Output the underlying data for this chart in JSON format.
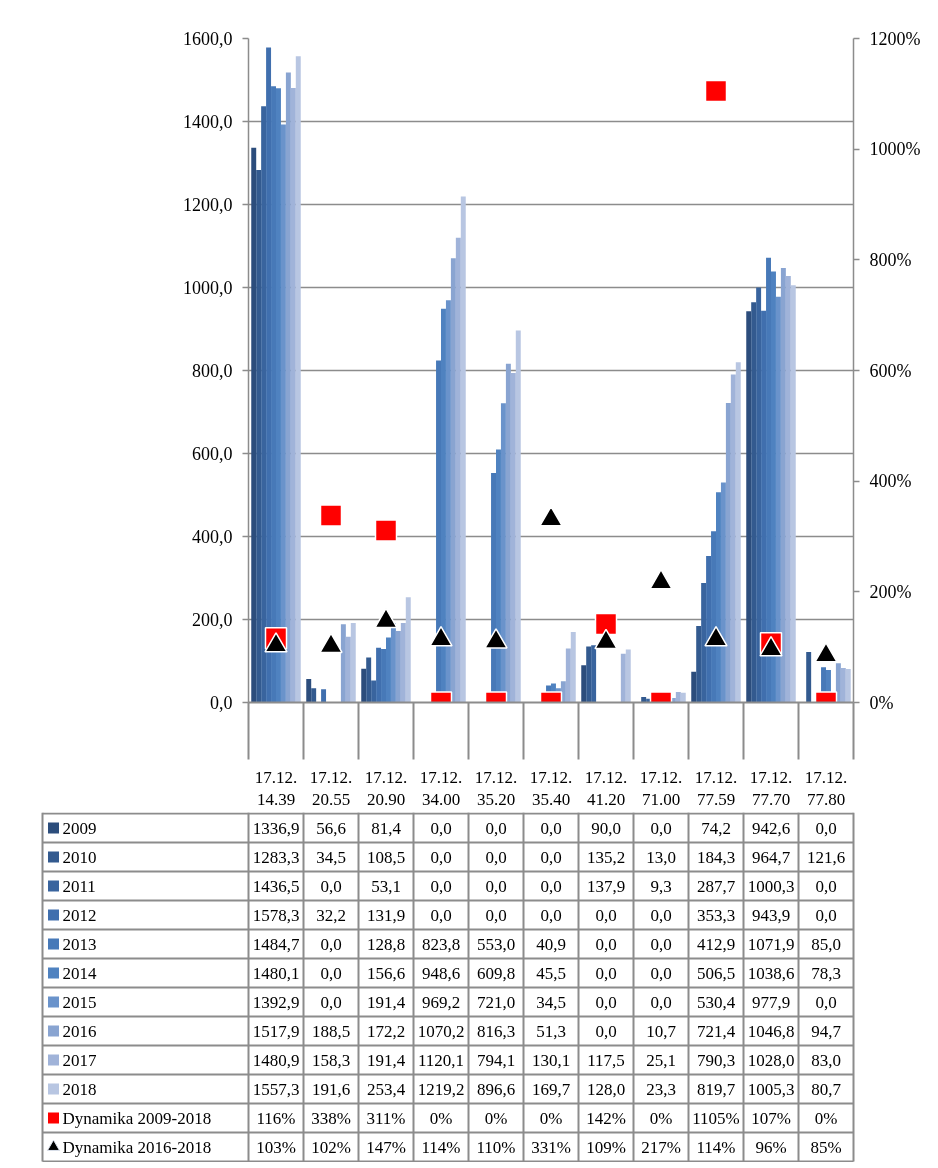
{
  "chart_data": {
    "type": "bar",
    "categories": [
      "17.12.14.39",
      "17.12.20.55",
      "17.12.20.90",
      "17.12.34.00",
      "17.12.35.20",
      "17.12.35.40",
      "17.12.41.20",
      "17.12.71.00",
      "17.12.77.59",
      "17.12.77.70",
      "17.12.77.80"
    ],
    "ylim": [
      0,
      1600
    ],
    "yticks": [
      {
        "value": 0,
        "label": "0,0"
      },
      {
        "value": 200,
        "label": "200,0"
      },
      {
        "value": 400,
        "label": "400,0"
      },
      {
        "value": 600,
        "label": "600,0"
      },
      {
        "value": 800,
        "label": "800,0"
      },
      {
        "value": 1000,
        "label": "1000,0"
      },
      {
        "value": 1200,
        "label": "1200,0"
      },
      {
        "value": 1400,
        "label": "1400,0"
      },
      {
        "value": 1600,
        "label": "1600,0"
      }
    ],
    "y2lim": [
      0,
      1200
    ],
    "y2ticks": [
      {
        "value": 0,
        "label": "0%"
      },
      {
        "value": 200,
        "label": "200%"
      },
      {
        "value": 400,
        "label": "400%"
      },
      {
        "value": 600,
        "label": "600%"
      },
      {
        "value": 800,
        "label": "800%"
      },
      {
        "value": 1000,
        "label": "1000%"
      },
      {
        "value": 1200,
        "label": "1200%"
      }
    ],
    "grid": "y",
    "legend": "bottom",
    "series": [
      {
        "name": "2009",
        "color": "#2c4d7c",
        "values": [
          1336.9,
          56.6,
          81.4,
          0.0,
          0.0,
          0.0,
          90.0,
          0.0,
          74.2,
          942.6,
          0.0
        ],
        "value_labels": [
          "1336,9",
          "56,6",
          "81,4",
          "0,0",
          "0,0",
          "0,0",
          "90,0",
          "0,0",
          "74,2",
          "942,6",
          "0,0"
        ]
      },
      {
        "name": "2010",
        "color": "#335a8f",
        "values": [
          1283.3,
          34.5,
          108.5,
          0.0,
          0.0,
          0.0,
          135.2,
          13.0,
          184.3,
          964.7,
          121.6
        ],
        "value_labels": [
          "1283,3",
          "34,5",
          "108,5",
          "0,0",
          "0,0",
          "0,0",
          "135,2",
          "13,0",
          "184,3",
          "964,7",
          "121,6"
        ]
      },
      {
        "name": "2011",
        "color": "#39649e",
        "values": [
          1436.5,
          0.0,
          53.1,
          0.0,
          0.0,
          0.0,
          137.9,
          9.3,
          287.7,
          1000.3,
          0.0
        ],
        "value_labels": [
          "1436,5",
          "0,0",
          "53,1",
          "0,0",
          "0,0",
          "0,0",
          "137,9",
          "9,3",
          "287,7",
          "1000,3",
          "0,0"
        ]
      },
      {
        "name": "2012",
        "color": "#406fae",
        "values": [
          1578.3,
          32.2,
          131.9,
          0.0,
          0.0,
          0.0,
          0.0,
          0.0,
          353.3,
          943.9,
          0.0
        ],
        "value_labels": [
          "1578,3",
          "32,2",
          "131,9",
          "0,0",
          "0,0",
          "0,0",
          "0,0",
          "0,0",
          "353,3",
          "943,9",
          "0,0"
        ]
      },
      {
        "name": "2013",
        "color": "#4779b8",
        "values": [
          1484.7,
          0.0,
          128.8,
          823.8,
          553.0,
          40.9,
          0.0,
          0.0,
          412.9,
          1071.9,
          85.0
        ],
        "value_labels": [
          "1484,7",
          "0,0",
          "128,8",
          "823,8",
          "553,0",
          "40,9",
          "0,0",
          "0,0",
          "412,9",
          "1071,9",
          "85,0"
        ]
      },
      {
        "name": "2014",
        "color": "#4f82c0",
        "values": [
          1480.1,
          0.0,
          156.6,
          948.6,
          609.8,
          45.5,
          0.0,
          0.0,
          506.5,
          1038.6,
          78.3
        ],
        "value_labels": [
          "1480,1",
          "0,0",
          "156,6",
          "948,6",
          "609,8",
          "45,5",
          "0,0",
          "0,0",
          "506,5",
          "1038,6",
          "78,3"
        ]
      },
      {
        "name": "2015",
        "color": "#6a93cb",
        "values": [
          1392.9,
          0.0,
          191.4,
          969.2,
          721.0,
          34.5,
          0.0,
          0.0,
          530.4,
          977.9,
          0.0
        ],
        "value_labels": [
          "1392,9",
          "0,0",
          "191,4",
          "969,2",
          "721,0",
          "34,5",
          "0,0",
          "0,0",
          "530,4",
          "977,9",
          "0,0"
        ]
      },
      {
        "name": "2016",
        "color": "#89a4d1",
        "values": [
          1517.9,
          188.5,
          172.2,
          1070.2,
          816.3,
          51.3,
          0.0,
          10.7,
          721.4,
          1046.8,
          94.7
        ],
        "value_labels": [
          "1517,9",
          "188,5",
          "172,2",
          "1070,2",
          "816,3",
          "51,3",
          "0,0",
          "10,7",
          "721,4",
          "1046,8",
          "94,7"
        ]
      },
      {
        "name": "2017",
        "color": "#a0b3d9",
        "values": [
          1480.9,
          158.3,
          191.4,
          1120.1,
          794.1,
          130.1,
          117.5,
          25.1,
          790.3,
          1028.0,
          83.0
        ],
        "value_labels": [
          "1480,9",
          "158,3",
          "191,4",
          "1120,1",
          "794,1",
          "130,1",
          "117,5",
          "25,1",
          "790,3",
          "1028,0",
          "83,0"
        ]
      },
      {
        "name": "2018",
        "color": "#b8c6e2",
        "values": [
          1557.3,
          191.6,
          253.4,
          1219.2,
          896.6,
          169.7,
          128.0,
          23.3,
          819.7,
          1005.3,
          80.7
        ],
        "value_labels": [
          "1557,3",
          "191,6",
          "253,4",
          "1219,2",
          "896,6",
          "169,7",
          "128,0",
          "23,3",
          "819,7",
          "1005,3",
          "80,7"
        ]
      },
      {
        "name": "Dynamika 2009-2018",
        "type": "scatter",
        "axis": "y2",
        "marker": "square",
        "color": "#ff0000",
        "values": [
          116,
          338,
          311,
          0,
          0,
          0,
          142,
          0,
          1105,
          107,
          0
        ],
        "value_labels": [
          "116%",
          "338%",
          "311%",
          "0%",
          "0%",
          "0%",
          "142%",
          "0%",
          "1105%",
          "107%",
          "0%"
        ]
      },
      {
        "name": "Dynamika 2016-2018",
        "type": "scatter",
        "axis": "y2",
        "marker": "triangle",
        "color": "#000000",
        "values": [
          103,
          102,
          147,
          114,
          110,
          331,
          109,
          217,
          114,
          96,
          85
        ],
        "value_labels": [
          "103%",
          "102%",
          "147%",
          "114%",
          "110%",
          "331%",
          "109%",
          "217%",
          "114%",
          "96%",
          "85%"
        ]
      }
    ]
  }
}
